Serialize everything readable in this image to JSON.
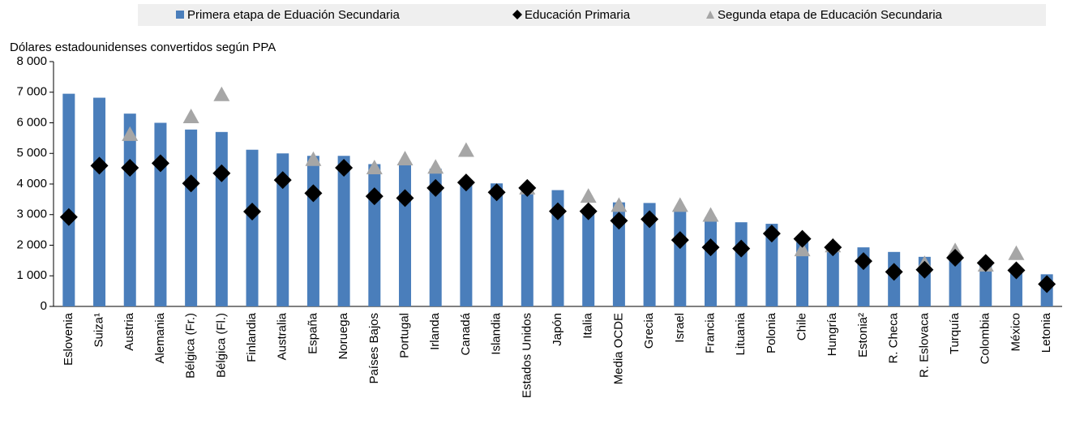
{
  "chart_data": {
    "type": "bar",
    "y_axis_title": "Dólares estadounidenses convertidos según PPA",
    "categories": [
      "Eslovenia",
      "Suiza¹",
      "Austria",
      "Alemania",
      "Bélgica (Fr.)",
      "Bélgica (Fl.)",
      "Finlandia",
      "Australia",
      "España",
      "Noruega",
      "Países Bajos",
      "Portugal",
      "Irlanda",
      "Canadá",
      "Islandia",
      "Estados Unidos",
      "Japón",
      "Italia",
      "Media OCDE",
      "Grecia",
      "Israel",
      "Francia",
      "Lituania",
      "Polonia",
      "Chile",
      "Hungría",
      "Estonia²",
      "R. Checa",
      "R. Eslovaca",
      "Turquía",
      "Colombia",
      "México",
      "Letonia"
    ],
    "series": [
      {
        "name": "Primera etapa de Eduación Secundaria",
        "color": "#4a7ebb",
        "marker": "bar",
        "values": [
          6950,
          6820,
          6300,
          6000,
          5780,
          5700,
          5120,
          5000,
          4920,
          4920,
          4650,
          4620,
          4500,
          4100,
          4020,
          3900,
          3800,
          3200,
          3400,
          3380,
          3100,
          2900,
          2750,
          2700,
          2100,
          1850,
          1930,
          1780,
          1620,
          1700,
          1500,
          1150,
          1050
        ]
      },
      {
        "name": "Educación Primaria",
        "color": "#000000",
        "marker": "diamond",
        "values": [
          2920,
          4600,
          4530,
          4680,
          4020,
          4350,
          3100,
          4130,
          3700,
          4530,
          3600,
          3540,
          3870,
          4050,
          3730,
          3870,
          3110,
          3110,
          2800,
          2850,
          2170,
          1930,
          1890,
          2380,
          2210,
          1930,
          1480,
          1130,
          1200,
          1590,
          1420,
          1180,
          730
        ]
      },
      {
        "name": "Segunda etapa de Educación Secundaria",
        "color": "#a6a6a6",
        "marker": "triangle",
        "values": [
          null,
          null,
          5620,
          null,
          6200,
          6920,
          null,
          null,
          4800,
          null,
          4530,
          4820,
          4550,
          5100,
          null,
          3870,
          null,
          3600,
          3300,
          null,
          3300,
          2980,
          null,
          null,
          1850,
          1980,
          null,
          null,
          1400,
          1820,
          1350,
          1730,
          null
        ]
      }
    ],
    "ylim": [
      0,
      8000
    ],
    "yticks": [
      0,
      {
        "value": 1000,
        "label": "1 000"
      },
      {
        "value": 2000,
        "label": "2 000"
      },
      {
        "value": 3000,
        "label": "3 000"
      },
      {
        "value": 4000,
        "label": "4 000"
      },
      {
        "value": 5000,
        "label": "5 000"
      },
      {
        "value": 6000,
        "label": "6 000"
      },
      {
        "value": 7000,
        "label": "7 000"
      },
      {
        "value": 8000,
        "label": "8 000"
      }
    ],
    "legend": "top"
  }
}
